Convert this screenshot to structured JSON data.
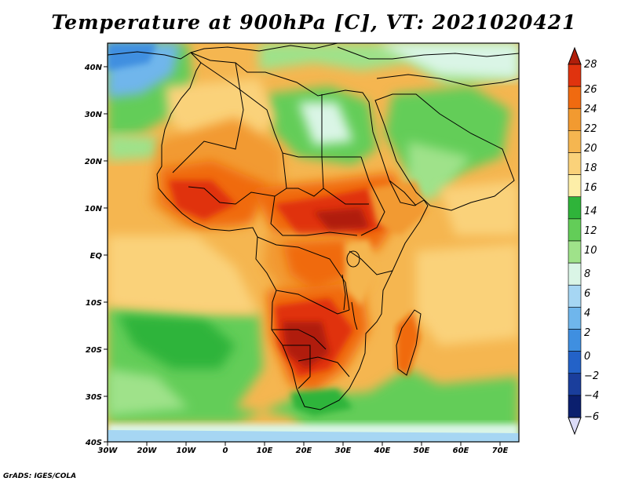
{
  "title": "Temperature at 900hPa [C], VT: 2021020421",
  "footer": "GrADS: IGES/COLA",
  "map": {
    "lon_range": [
      -30,
      75
    ],
    "lat_range": [
      -40,
      44
    ],
    "xticks": [
      "30W",
      "20W",
      "10W",
      "0",
      "10E",
      "20E",
      "30E",
      "40E",
      "50E",
      "60E",
      "70E"
    ],
    "yticks": [
      "40N",
      "30N",
      "20N",
      "10N",
      "EQ",
      "10S",
      "20S",
      "30S",
      "40S"
    ]
  },
  "colorbar": {
    "levels": [
      "28",
      "26",
      "24",
      "22",
      "20",
      "18",
      "16",
      "14",
      "12",
      "10",
      "8",
      "6",
      "4",
      "2",
      "0",
      "−2",
      "−4",
      "−6"
    ],
    "colors": [
      "#b01e0a",
      "#e0330e",
      "#f06a10",
      "#f29a30",
      "#f5b650",
      "#fad27a",
      "#fdeea8",
      "#2fb43a",
      "#63cd58",
      "#9fe28a",
      "#daf5e6",
      "#a6d6f3",
      "#6fb6ec",
      "#3f8fe0",
      "#2362c8",
      "#1a3e9c",
      "#0b1f6e",
      "#dcdcf8"
    ]
  }
}
